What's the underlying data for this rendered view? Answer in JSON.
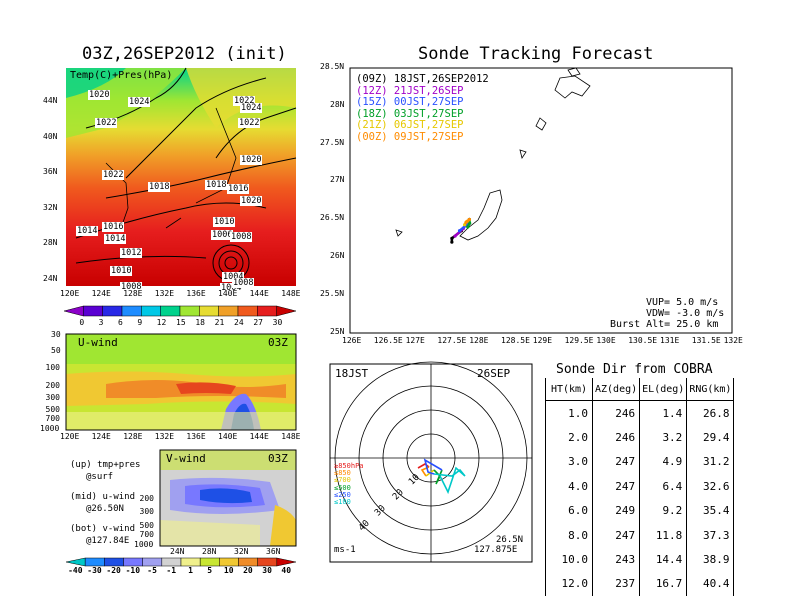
{
  "left": {
    "title": "03Z,26SEP2012 (init)",
    "map_label": "Temp(C)+Pres(hPa)",
    "lat_ticks": [
      "44N",
      "40N",
      "36N",
      "32N",
      "28N",
      "24N"
    ],
    "lon_ticks": [
      "120E",
      "124E",
      "128E",
      "132E",
      "136E",
      "140E",
      "144E",
      "148E"
    ],
    "pressure_labels": [
      "1020",
      "1024",
      "1022",
      "1022",
      "1024",
      "1022",
      "1020",
      "1022",
      "1018",
      "1018",
      "1016",
      "1020",
      "1014",
      "1016",
      "1014",
      "1012",
      "1010",
      "1010",
      "1008",
      "1006",
      "1008",
      "1004",
      "1004",
      "1008"
    ],
    "temp_colorbar": [
      "0",
      "3",
      "6",
      "9",
      "12",
      "15",
      "18",
      "21",
      "24",
      "27",
      "30"
    ],
    "temp_colors": [
      "#8b00c8",
      "#5a00d2",
      "#2828e6",
      "#1e8cff",
      "#00c8e6",
      "#00d28c",
      "#a0e632",
      "#e6dc32",
      "#f0a028",
      "#f05a1e",
      "#e61e1e",
      "#c80000"
    ],
    "u_label": "U-wind",
    "u_time": "03Z",
    "u_levels": [
      "30",
      "50",
      "100",
      "200",
      "300",
      "500",
      "700",
      "1000"
    ],
    "u_lon_ticks": [
      "120E",
      "124E",
      "128E",
      "132E",
      "136E",
      "140E",
      "144E",
      "148E"
    ],
    "v_label": "V-wind",
    "v_time": "03Z",
    "v_levels": [
      "200",
      "300",
      "500",
      "700",
      "1000"
    ],
    "v_lat_ticks": [
      "24N",
      "28N",
      "32N",
      "36N"
    ],
    "notes": [
      "(up) tmp+pres",
      "@surf",
      "(mid) u-wind",
      "@26.50N",
      "(bot) v-wind",
      "@127.84E"
    ],
    "wind_colorbar": [
      "-40",
      "-30",
      "-20",
      "-10",
      "-5",
      "-1",
      "1",
      "5",
      "10",
      "20",
      "30",
      "40"
    ],
    "wind_colors": [
      "#00c8c8",
      "#1e8cff",
      "#1e50e6",
      "#7878ff",
      "#a0a0f0",
      "#d2d2d2",
      "#f0f08c",
      "#c8e632",
      "#f0c832",
      "#f08c28",
      "#e6461e",
      "#c80000"
    ]
  },
  "tracking": {
    "title": "Sonde Tracking Forecast",
    "legend": [
      {
        "text": "(09Z) 18JST,26SEP2012",
        "color": "#000000"
      },
      {
        "text": "(12Z) 21JST,26SEP",
        "color": "#a000c8"
      },
      {
        "text": "(15Z) 00JST,27SEP",
        "color": "#2850ff"
      },
      {
        "text": "(18Z) 03JST,27SEP",
        "color": "#00a028"
      },
      {
        "text": "(21Z) 06JST,27SEP",
        "color": "#e6c800"
      },
      {
        "text": "(00Z) 09JST,27SEP",
        "color": "#ff8c00"
      }
    ],
    "lat_ticks": [
      "28.5N",
      "28N",
      "27.5N",
      "27N",
      "26.5N",
      "26N",
      "25.5N",
      "25N"
    ],
    "lon_ticks": [
      "126E",
      "126.5E",
      "127E",
      "127.5E",
      "128E",
      "128.5E",
      "129E",
      "129.5E",
      "130E",
      "130.5E",
      "131E",
      "131.5E",
      "132E"
    ],
    "vup": "VUP= 5.0 m/s",
    "vdw": "VDW= -3.0 m/s",
    "burst": "Burst Alt= 25.0 km"
  },
  "polar": {
    "time": "18JST",
    "date": "26SEP",
    "lat": "26.5N",
    "lon": "127.875E",
    "unit": "ms-1",
    "ring_labels": [
      "10",
      "20",
      "30",
      "40"
    ],
    "level_legend": [
      {
        "text": "≥850hPa",
        "color": "#e61e1e"
      },
      {
        "text": "≤850",
        "color": "#ff8c00"
      },
      {
        "text": "≤700",
        "color": "#e6c800"
      },
      {
        "text": "≤500",
        "color": "#00a028"
      },
      {
        "text": "≤250",
        "color": "#2850ff"
      },
      {
        "text": "≤100",
        "color": "#00c8c8"
      }
    ]
  },
  "sonde_table": {
    "title": "Sonde Dir from COBRA",
    "headers": [
      "HT(km)",
      "AZ(deg)",
      "EL(deg)",
      "RNG(km)"
    ],
    "rows": [
      [
        "1.0",
        "246",
        "1.4",
        "26.8"
      ],
      [
        "2.0",
        "246",
        "3.2",
        "29.4"
      ],
      [
        "3.0",
        "247",
        "4.9",
        "31.2"
      ],
      [
        "4.0",
        "247",
        "6.4",
        "32.6"
      ],
      [
        "6.0",
        "249",
        "9.2",
        "35.4"
      ],
      [
        "8.0",
        "247",
        "11.8",
        "37.3"
      ],
      [
        "10.0",
        "243",
        "14.4",
        "38.9"
      ],
      [
        "12.0",
        "237",
        "16.7",
        "40.4"
      ]
    ]
  },
  "chart_data": [
    {
      "type": "table",
      "title": "Sonde Dir from COBRA",
      "columns": [
        "HT(km)",
        "AZ(deg)",
        "EL(deg)",
        "RNG(km)"
      ],
      "rows": [
        [
          1.0,
          246,
          1.4,
          26.8
        ],
        [
          2.0,
          246,
          3.2,
          29.4
        ],
        [
          3.0,
          247,
          4.9,
          31.2
        ],
        [
          4.0,
          247,
          6.4,
          32.6
        ],
        [
          6.0,
          249,
          9.2,
          35.4
        ],
        [
          8.0,
          247,
          11.8,
          37.3
        ],
        [
          10.0,
          243,
          14.4,
          38.9
        ],
        [
          12.0,
          237,
          16.7,
          40.4
        ]
      ]
    },
    {
      "type": "scatter",
      "title": "Sonde Tracking Forecast",
      "xlim": [
        126,
        132
      ],
      "ylim": [
        25,
        28.5
      ],
      "series": [
        {
          "name": "(09Z) 18JST,26SEP2012",
          "x": [
            127.875,
            127.75,
            127.6,
            127.6
          ],
          "y": [
            26.5,
            26.35,
            26.25,
            26.2
          ]
        },
        {
          "name": "(12Z) 21JST,26SEP",
          "x": [
            127.875,
            127.78,
            127.65
          ],
          "y": [
            26.5,
            26.38,
            26.28
          ]
        },
        {
          "name": "(15Z) 00JST,27SEP",
          "x": [
            127.875,
            127.82,
            127.72
          ],
          "y": [
            26.5,
            26.42,
            26.35
          ]
        },
        {
          "name": "(18Z) 03JST,27SEP",
          "x": [
            127.875,
            127.88,
            127.85
          ],
          "y": [
            26.5,
            26.45,
            26.4
          ]
        },
        {
          "name": "(21Z) 06JST,27SEP",
          "x": [
            127.875,
            127.83,
            127.8
          ],
          "y": [
            26.5,
            26.47,
            26.43
          ]
        },
        {
          "name": "(00Z) 09JST,27SEP",
          "x": [
            127.875,
            127.85,
            127.82
          ],
          "y": [
            26.5,
            26.48,
            26.46
          ]
        }
      ]
    }
  ]
}
